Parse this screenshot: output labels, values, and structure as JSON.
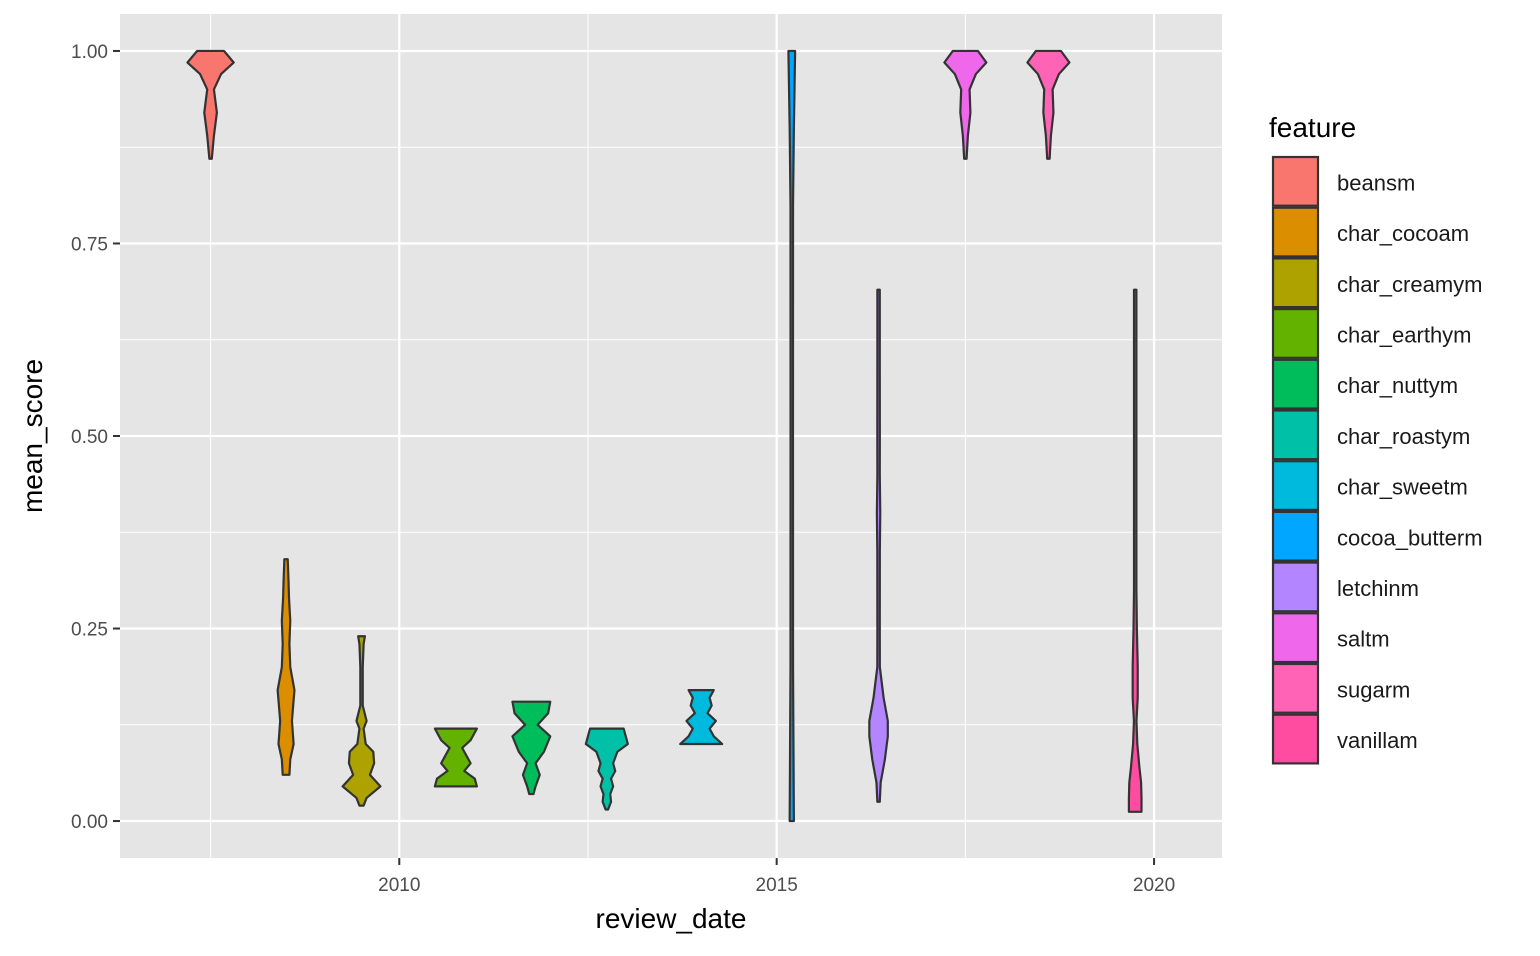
{
  "chart_data": {
    "type": "violin",
    "title": "",
    "xlabel": "review_date",
    "ylabel": "mean_score",
    "xlim": [
      2006.3,
      2020.9
    ],
    "ylim": [
      -0.048,
      1.048
    ],
    "x_ticks": [
      2010,
      2015,
      2020
    ],
    "x_tick_labels": [
      "2010",
      "2015",
      "2020"
    ],
    "y_ticks": [
      0,
      0.25,
      0.5,
      0.75,
      1.0
    ],
    "y_tick_labels": [
      "0.00",
      "0.25",
      "0.50",
      "0.75",
      "1.00"
    ],
    "grid": true,
    "background": "#e5e5e5",
    "legend": {
      "title": "feature",
      "position": "right",
      "entries": [
        "beansm",
        "char_cocoam",
        "char_creamym",
        "char_earthym",
        "char_nuttym",
        "char_roastym",
        "char_sweetm",
        "cocoa_butterm",
        "letchinm",
        "saltm",
        "sugarm",
        "vanillam"
      ]
    },
    "series": [
      {
        "name": "beansm",
        "color": "#F8766D",
        "x": 2007.5,
        "min": 0.86,
        "max": 1.0,
        "profile": [
          [
            0.86,
            0.02
          ],
          [
            0.89,
            0.08
          ],
          [
            0.92,
            0.15
          ],
          [
            0.95,
            0.08
          ],
          [
            0.97,
            0.25
          ],
          [
            0.985,
            0.55
          ],
          [
            1.0,
            0.32
          ]
        ]
      },
      {
        "name": "char_cocoam",
        "color": "#DB8E00",
        "x": 2008.5,
        "min": 0.06,
        "max": 0.34,
        "profile": [
          [
            0.06,
            0.08
          ],
          [
            0.08,
            0.1
          ],
          [
            0.1,
            0.18
          ],
          [
            0.13,
            0.14
          ],
          [
            0.17,
            0.2
          ],
          [
            0.2,
            0.1
          ],
          [
            0.23,
            0.08
          ],
          [
            0.26,
            0.1
          ],
          [
            0.29,
            0.07
          ],
          [
            0.31,
            0.06
          ],
          [
            0.34,
            0.04
          ]
        ]
      },
      {
        "name": "char_creamym",
        "color": "#AEA200",
        "x": 2009.5,
        "min": 0.02,
        "max": 0.24,
        "profile": [
          [
            0.02,
            0.05
          ],
          [
            0.03,
            0.12
          ],
          [
            0.045,
            0.45
          ],
          [
            0.06,
            0.2
          ],
          [
            0.075,
            0.3
          ],
          [
            0.09,
            0.28
          ],
          [
            0.1,
            0.1
          ],
          [
            0.12,
            0.05
          ],
          [
            0.13,
            0.12
          ],
          [
            0.15,
            0.02
          ],
          [
            0.2,
            0.02
          ],
          [
            0.23,
            0.05
          ],
          [
            0.24,
            0.08
          ]
        ]
      },
      {
        "name": "char_earthym",
        "color": "#64B200",
        "x": 2010.75,
        "min": 0.045,
        "max": 0.12,
        "profile": [
          [
            0.045,
            0.5
          ],
          [
            0.055,
            0.45
          ],
          [
            0.065,
            0.2
          ],
          [
            0.075,
            0.35
          ],
          [
            0.085,
            0.25
          ],
          [
            0.095,
            0.15
          ],
          [
            0.105,
            0.35
          ],
          [
            0.12,
            0.5
          ]
        ]
      },
      {
        "name": "char_nuttym",
        "color": "#00BD5C",
        "x": 2011.75,
        "min": 0.035,
        "max": 0.155,
        "profile": [
          [
            0.035,
            0.05
          ],
          [
            0.045,
            0.1
          ],
          [
            0.06,
            0.2
          ],
          [
            0.075,
            0.1
          ],
          [
            0.09,
            0.3
          ],
          [
            0.11,
            0.45
          ],
          [
            0.125,
            0.15
          ],
          [
            0.14,
            0.4
          ],
          [
            0.155,
            0.45
          ]
        ]
      },
      {
        "name": "char_roastym",
        "color": "#00C1A7",
        "x": 2012.75,
        "min": 0.015,
        "max": 0.12,
        "profile": [
          [
            0.015,
            0.03
          ],
          [
            0.025,
            0.1
          ],
          [
            0.035,
            0.08
          ],
          [
            0.045,
            0.15
          ],
          [
            0.055,
            0.1
          ],
          [
            0.065,
            0.2
          ],
          [
            0.075,
            0.15
          ],
          [
            0.09,
            0.25
          ],
          [
            0.1,
            0.5
          ],
          [
            0.11,
            0.45
          ],
          [
            0.12,
            0.4
          ]
        ]
      },
      {
        "name": "char_sweetm",
        "color": "#00BADE",
        "x": 2014.0,
        "min": 0.1,
        "max": 0.17,
        "profile": [
          [
            0.1,
            0.5
          ],
          [
            0.11,
            0.3
          ],
          [
            0.12,
            0.2
          ],
          [
            0.13,
            0.35
          ],
          [
            0.14,
            0.15
          ],
          [
            0.15,
            0.25
          ],
          [
            0.16,
            0.2
          ],
          [
            0.17,
            0.3
          ]
        ]
      },
      {
        "name": "cocoa_butterm",
        "color": "#00A6FF",
        "x": 2015.2,
        "min": 0.0,
        "max": 1.0,
        "profile": [
          [
            0.0,
            0.05
          ],
          [
            0.2,
            0.03
          ],
          [
            0.5,
            0.01
          ],
          [
            0.8,
            0.03
          ],
          [
            0.9,
            0.05
          ],
          [
            1.0,
            0.08
          ]
        ]
      },
      {
        "name": "letchinm",
        "color": "#B385FF",
        "x": 2016.35,
        "min": 0.025,
        "max": 0.69,
        "profile": [
          [
            0.025,
            0.01
          ],
          [
            0.05,
            0.05
          ],
          [
            0.08,
            0.15
          ],
          [
            0.11,
            0.22
          ],
          [
            0.13,
            0.22
          ],
          [
            0.16,
            0.12
          ],
          [
            0.2,
            0.03
          ],
          [
            0.25,
            0.02
          ],
          [
            0.35,
            0.03
          ],
          [
            0.4,
            0.04
          ],
          [
            0.45,
            0.02
          ],
          [
            0.5,
            0.03
          ],
          [
            0.6,
            0.01
          ],
          [
            0.69,
            0.01
          ]
        ]
      },
      {
        "name": "saltm",
        "color": "#EF67EB",
        "x": 2017.5,
        "min": 0.86,
        "max": 1.0,
        "profile": [
          [
            0.86,
            0.02
          ],
          [
            0.89,
            0.06
          ],
          [
            0.92,
            0.12
          ],
          [
            0.95,
            0.1
          ],
          [
            0.97,
            0.25
          ],
          [
            0.985,
            0.5
          ],
          [
            1.0,
            0.3
          ]
        ]
      },
      {
        "name": "sugarm",
        "color": "#FF63B6",
        "x": 2018.6,
        "min": 0.86,
        "max": 1.0,
        "profile": [
          [
            0.86,
            0.02
          ],
          [
            0.89,
            0.06
          ],
          [
            0.92,
            0.12
          ],
          [
            0.95,
            0.1
          ],
          [
            0.97,
            0.25
          ],
          [
            0.985,
            0.5
          ],
          [
            1.0,
            0.3
          ]
        ]
      },
      {
        "name": "vanillam",
        "color": "#FF4CA0",
        "x": 2019.75,
        "min": 0.012,
        "max": 0.69,
        "profile": [
          [
            0.012,
            0.15
          ],
          [
            0.03,
            0.15
          ],
          [
            0.05,
            0.14
          ],
          [
            0.07,
            0.1
          ],
          [
            0.1,
            0.05
          ],
          [
            0.13,
            0.03
          ],
          [
            0.16,
            0.06
          ],
          [
            0.2,
            0.06
          ],
          [
            0.25,
            0.04
          ],
          [
            0.3,
            0.02
          ],
          [
            0.4,
            0.01
          ],
          [
            0.5,
            0.01
          ],
          [
            0.6,
            0.01
          ],
          [
            0.69,
            0.01
          ]
        ]
      }
    ]
  }
}
